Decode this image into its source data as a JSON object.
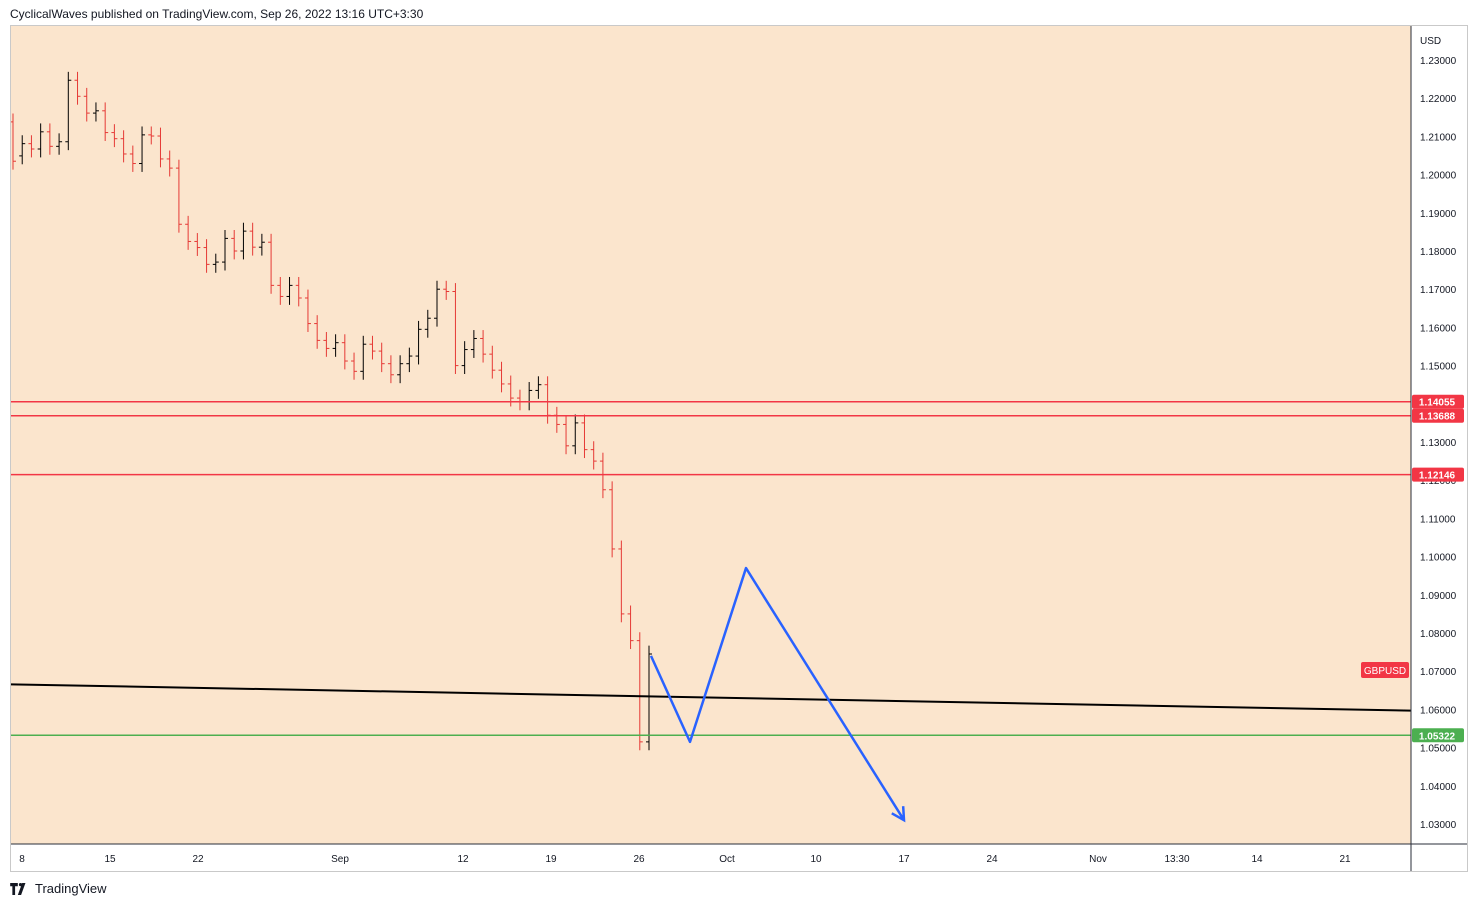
{
  "header": {
    "text": "CyclicalWaves published on TradingView.com, Sep 26, 2022 13:16 UTC+3:30"
  },
  "footer": {
    "brand": "TradingView",
    "logo_icon": "tradingview-logo-icon"
  },
  "colors": {
    "background": "#fbe5cd",
    "up_candle": "#000000",
    "down_candle": "#e53935",
    "resistance": "#f23645",
    "support": "#4caf50",
    "trendline": "#000000",
    "projection": "#2962ff",
    "symbol_badge": "#f23645"
  },
  "chart_data": {
    "type": "ohlc",
    "symbol": "GBPUSD",
    "currency": "USD",
    "ylim": [
      1.023,
      1.24
    ],
    "yticks": [
      "1.23000",
      "1.22000",
      "1.21000",
      "1.20000",
      "1.19000",
      "1.18000",
      "1.17000",
      "1.16000",
      "1.15000",
      "1.14000",
      "1.13000",
      "1.12000",
      "1.11000",
      "1.10000",
      "1.09000",
      "1.08000",
      "1.07000",
      "1.06000",
      "1.05000",
      "1.04000",
      "1.03000"
    ],
    "xticks": [
      "8",
      "15",
      "22",
      "Sep",
      "12",
      "19",
      "26",
      "Oct",
      "10",
      "17",
      "24",
      "Nov",
      "13:30",
      "14",
      "21"
    ],
    "price_series": [
      [
        1.2138,
        1.2035
      ],
      [
        1.2049,
        1.2081
      ],
      [
        1.2081,
        1.2067
      ],
      [
        1.2067,
        1.2112
      ],
      [
        1.2112,
        1.2074
      ],
      [
        1.2074,
        1.2086
      ],
      [
        1.2086,
        1.2247
      ],
      [
        1.2247,
        1.2205
      ],
      [
        1.2205,
        1.2161
      ],
      [
        1.2161,
        1.2167
      ],
      [
        1.2167,
        1.211
      ],
      [
        1.211,
        1.2094
      ],
      [
        1.2094,
        1.2054
      ],
      [
        1.2054,
        1.2029
      ],
      [
        1.2029,
        1.2104
      ],
      [
        1.2104,
        1.2101
      ],
      [
        1.2101,
        1.2041
      ],
      [
        1.2041,
        1.2017
      ],
      [
        1.2017,
        1.187
      ],
      [
        1.187,
        1.1825
      ],
      [
        1.1825,
        1.1809
      ],
      [
        1.1809,
        1.1765
      ],
      [
        1.1765,
        1.1771
      ],
      [
        1.1771,
        1.1833
      ],
      [
        1.1833,
        1.18
      ],
      [
        1.18,
        1.1852
      ],
      [
        1.1852,
        1.181
      ],
      [
        1.181,
        1.1823
      ],
      [
        1.1823,
        1.171
      ],
      [
        1.171,
        1.1681
      ],
      [
        1.1681,
        1.171
      ],
      [
        1.171,
        1.1677
      ],
      [
        1.1677,
        1.161
      ],
      [
        1.161,
        1.1566
      ],
      [
        1.1566,
        1.1545
      ],
      [
        1.1545,
        1.156
      ],
      [
        1.156,
        1.1512
      ],
      [
        1.1512,
        1.1485
      ],
      [
        1.1485,
        1.1556
      ],
      [
        1.1556,
        1.1538
      ],
      [
        1.1538,
        1.1505
      ],
      [
        1.1505,
        1.1476
      ],
      [
        1.1476,
        1.1505
      ],
      [
        1.1505,
        1.1525
      ],
      [
        1.1525,
        1.1595
      ],
      [
        1.1595,
        1.1624
      ],
      [
        1.1624,
        1.17
      ],
      [
        1.17,
        1.1694
      ],
      [
        1.1694,
        1.15
      ],
      [
        1.15,
        1.1542
      ],
      [
        1.1542,
        1.1571
      ],
      [
        1.1571,
        1.153
      ],
      [
        1.153,
        1.1488
      ],
      [
        1.1488,
        1.1452
      ],
      [
        1.1452,
        1.1415
      ],
      [
        1.1415,
        1.1405
      ],
      [
        1.1405,
        1.1435
      ],
      [
        1.1435,
        1.145
      ],
      [
        1.145,
        1.137
      ],
      [
        1.137,
        1.1346
      ],
      [
        1.1346,
        1.129
      ],
      [
        1.129,
        1.135
      ],
      [
        1.135,
        1.128
      ],
      [
        1.128,
        1.125
      ],
      [
        1.125,
        1.1175
      ],
      [
        1.1175,
        1.102
      ],
      [
        1.102,
        1.085
      ],
      [
        1.085,
        1.078
      ],
      [
        1.078,
        1.0515
      ],
      [
        1.0515,
        1.0745
      ]
    ],
    "horizontal_levels": [
      {
        "label": "1.14055",
        "value": 1.14055,
        "kind": "resistance"
      },
      {
        "label": "1.13688",
        "value": 1.13688,
        "kind": "resistance"
      },
      {
        "label": "1.12146",
        "value": 1.12146,
        "kind": "resistance"
      },
      {
        "label": "1.05322",
        "value": 1.05322,
        "kind": "support"
      }
    ],
    "trendline": {
      "from": [
        "8",
        1.0665
      ],
      "to": [
        "21",
        1.06
      ]
    },
    "projection_path": [
      [
        "26",
        1.074
      ],
      [
        "Oct",
        1.0515
      ],
      [
        "Oct",
        1.097
      ],
      [
        "17",
        1.031
      ]
    ],
    "symbol_label": "GBPUSD",
    "symbol_label_value": 1.0703
  }
}
